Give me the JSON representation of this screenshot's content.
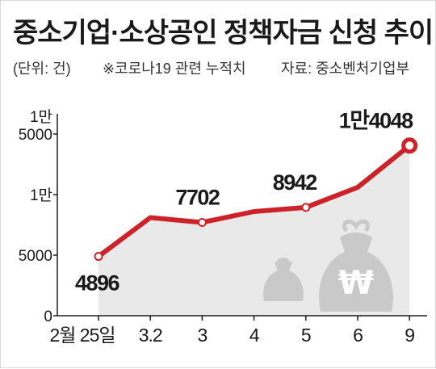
{
  "header": {
    "title": "중소기업·소상공인 정책자금 신청 추이",
    "unit": "(단위: 건)",
    "note": "※코로나19 관련 누적치",
    "source": "자료: 중소벤처기업부"
  },
  "colors": {
    "line": "#cc2229",
    "area": "#e9e9e9",
    "icon": "#c9c9c9",
    "text": "#1a1a1a",
    "axis": "#1a1a1a"
  },
  "chart_data": {
    "type": "line",
    "title": "중소기업·소상공인 정책자금 신청 추이",
    "unit": "건",
    "categories": [
      "2월 25일",
      "3.2",
      "3",
      "4",
      "5",
      "6",
      "9"
    ],
    "values": [
      4896,
      8100,
      7702,
      8600,
      8942,
      10600,
      14048
    ],
    "value_labels": [
      "4896",
      "",
      "7702",
      "",
      "8942",
      "",
      "1만4048"
    ],
    "y_ticks": [
      {
        "value": 0,
        "label": "0"
      },
      {
        "value": 5000,
        "label": "5000"
      },
      {
        "value": 10000,
        "label": "1만"
      },
      {
        "value": 15000,
        "label": "1만\n5000"
      }
    ],
    "ylim": [
      0,
      15000
    ],
    "grid": false,
    "icons": [
      "money-bag-small-icon",
      "won-money-bag-icon"
    ]
  }
}
